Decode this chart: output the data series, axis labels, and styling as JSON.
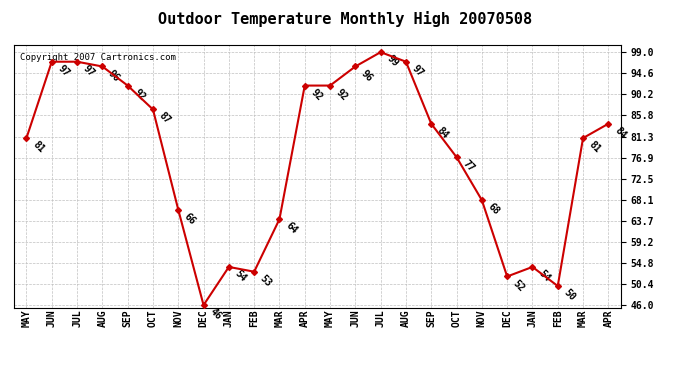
{
  "title": "Outdoor Temperature Monthly High 20070508",
  "copyright": "Copyright 2007 Cartronics.com",
  "months": [
    "MAY",
    "JUN",
    "JUL",
    "AUG",
    "SEP",
    "OCT",
    "NOV",
    "DEC",
    "JAN",
    "FEB",
    "MAR",
    "APR",
    "MAY",
    "JUN",
    "JUL",
    "AUG",
    "SEP",
    "OCT",
    "NOV",
    "DEC",
    "JAN",
    "FEB",
    "MAR",
    "APR"
  ],
  "values": [
    81,
    97,
    97,
    96,
    92,
    87,
    66,
    46,
    54,
    53,
    64,
    92,
    92,
    96,
    99,
    97,
    84,
    77,
    68,
    52,
    54,
    50,
    81,
    84
  ],
  "ymin": 46.0,
  "ymax": 99.0,
  "yticks": [
    46.0,
    50.4,
    54.8,
    59.2,
    63.7,
    68.1,
    72.5,
    76.9,
    81.3,
    85.8,
    90.2,
    94.6,
    99.0
  ],
  "line_color": "#cc0000",
  "marker_color": "#cc0000",
  "bg_color": "#ffffff",
  "grid_color": "#c0c0c0",
  "title_fontsize": 11,
  "tick_fontsize": 7,
  "annotation_fontsize": 7
}
